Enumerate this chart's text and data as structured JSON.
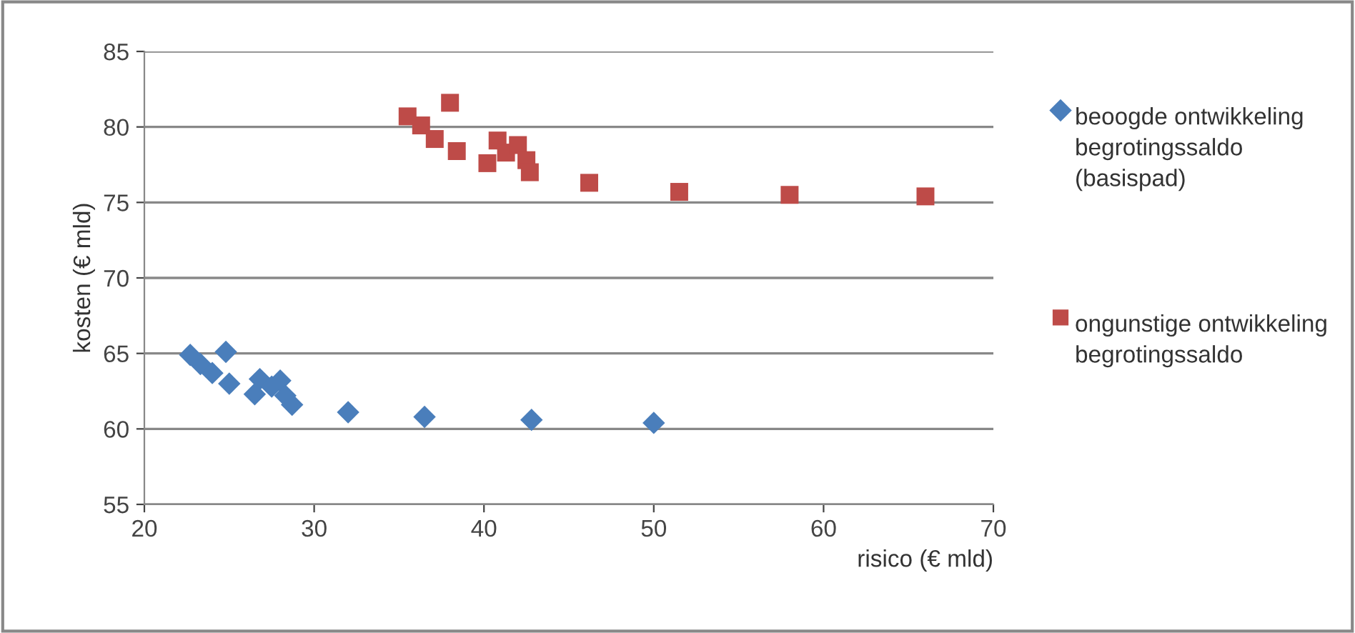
{
  "chart_data": {
    "type": "scatter",
    "xlabel": "risico (€ mld)",
    "ylabel": "kosten (€ mld)",
    "xlim": [
      20,
      70
    ],
    "xticks": [
      20,
      30,
      40,
      50,
      60,
      70
    ],
    "ylim": [
      55,
      85
    ],
    "yticks": [
      55,
      60,
      65,
      70,
      75,
      80,
      85
    ],
    "grid": "y",
    "legend": "right",
    "series": [
      {
        "name": "beoogde ontwikkeling begrotingssaldo (basispad)",
        "color": "#4a7ebb",
        "marker": "diamond",
        "x": [
          22.7,
          23.3,
          24,
          24.8,
          25,
          26.5,
          26.8,
          27.5,
          28,
          28.3,
          28.7,
          32,
          36.5,
          42.8,
          50
        ],
        "values": [
          64.9,
          64.3,
          63.7,
          65.1,
          63.0,
          62.3,
          63.3,
          62.8,
          63.2,
          62.2,
          61.6,
          61.1,
          60.8,
          60.6,
          60.4
        ]
      },
      {
        "name": "ongunstige ontwikkeling begrotingssaldo",
        "color": "#be4b48",
        "marker": "square",
        "x": [
          35.5,
          36.3,
          37.1,
          38,
          38.4,
          40.2,
          40.8,
          41.3,
          42,
          42.5,
          42.7,
          46.2,
          51.5,
          58,
          66
        ],
        "values": [
          80.7,
          80.1,
          79.2,
          81.6,
          78.4,
          77.6,
          79.1,
          78.3,
          78.8,
          77.8,
          77.0,
          76.3,
          75.7,
          75.5,
          75.4
        ]
      }
    ]
  }
}
